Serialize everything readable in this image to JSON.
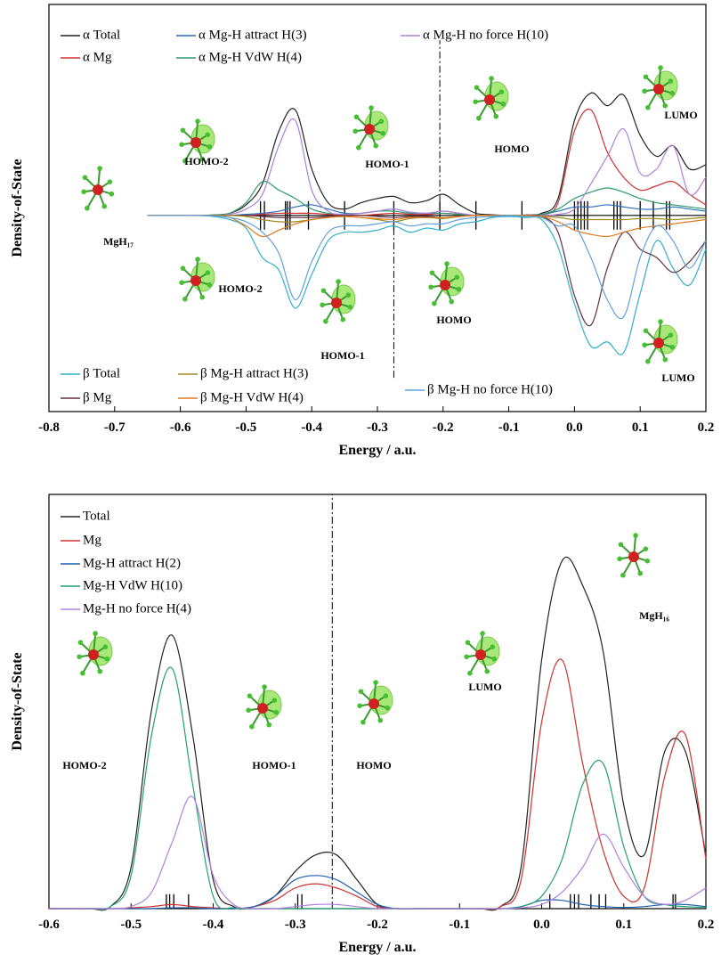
{
  "chart_data": [
    {
      "type": "line",
      "xlabel": "Energy / a.u.",
      "ylabel": "Density-of-State",
      "xlim": [
        -0.8,
        0.2
      ],
      "ylim": [
        -93,
        100
      ],
      "xticks": [
        -0.8,
        -0.7,
        -0.6,
        -0.5,
        -0.4,
        -0.3,
        -0.2,
        -0.1,
        {
          "value": 0,
          "label": "0.0"
        },
        0.1,
        0.2
      ],
      "x": [
        -0.65,
        -0.625,
        -0.6,
        -0.575,
        -0.55,
        -0.525,
        -0.5,
        -0.475,
        -0.45,
        -0.425,
        -0.4,
        -0.375,
        -0.35,
        -0.325,
        -0.3,
        -0.275,
        -0.25,
        -0.225,
        -0.2,
        -0.175,
        -0.15,
        -0.125,
        -0.1,
        -0.075,
        -0.05,
        -0.025,
        0,
        0.025,
        0.05,
        0.075,
        0.1,
        0.125,
        0.15,
        0.175,
        0.2
      ],
      "series": [
        {
          "name": "α Total",
          "color": "#222222",
          "values": [
            0,
            0,
            0,
            0,
            0.2,
            1,
            5,
            15,
            40,
            50,
            22,
            6,
            3,
            6,
            8,
            9,
            6,
            7,
            10,
            5,
            1,
            0.3,
            0,
            0.2,
            1,
            8,
            45,
            58,
            52,
            57,
            38,
            28,
            33,
            22,
            24
          ]
        },
        {
          "name": "α Mg",
          "color": "#d03030",
          "values": [
            0,
            0,
            0,
            0,
            0,
            0,
            0,
            0.5,
            1,
            1,
            1,
            0.5,
            0,
            0,
            0.5,
            1,
            0.5,
            0.5,
            1,
            0.5,
            0,
            0,
            0,
            0,
            0.3,
            6,
            40,
            50,
            30,
            18,
            12,
            14,
            16,
            10,
            5
          ]
        },
        {
          "name": "α Mg-H attract H(3)",
          "color": "#2a6fb8",
          "values": [
            0,
            0,
            0,
            0,
            0,
            0,
            0.5,
            1,
            2,
            4,
            5,
            3,
            1,
            1,
            2,
            3,
            1.5,
            1,
            2,
            1,
            0,
            0,
            0,
            0,
            0.5,
            2,
            4,
            4,
            5,
            4,
            3,
            3,
            4,
            3,
            2
          ]
        },
        {
          "name": "α Mg-H VdW H(4)",
          "color": "#2a9a6a",
          "values": [
            0,
            0,
            0,
            0,
            0.2,
            1,
            6,
            16,
            12,
            8,
            3,
            1,
            0.5,
            1,
            2,
            2,
            1,
            1,
            1,
            0.5,
            0,
            0,
            0,
            0,
            0.5,
            3,
            8,
            11,
            13,
            11,
            8,
            6,
            5,
            4,
            3
          ]
        },
        {
          "name": "α Mg-H no force H(10)",
          "color": "#b080d8",
          "values": [
            0,
            0,
            0,
            0,
            0,
            0.5,
            3,
            10,
            33,
            45,
            12,
            2,
            0.5,
            1,
            2,
            3,
            1.5,
            1,
            2,
            1,
            0,
            0,
            0,
            0,
            0,
            0.5,
            3,
            15,
            28,
            41,
            20,
            22,
            33,
            10,
            18
          ]
        },
        {
          "name": "β Total",
          "color": "#30b0c8",
          "values": [
            0,
            0,
            0,
            0,
            -0.5,
            -2,
            -6,
            -20,
            -26,
            -44,
            -28,
            -12,
            -8,
            -8,
            -7,
            -5,
            -8,
            -6,
            -7,
            -4,
            -3,
            -1,
            -0.5,
            -1,
            -2,
            -15,
            -42,
            -62,
            -60,
            -65,
            -37,
            -12,
            -25,
            -33,
            -16
          ]
        },
        {
          "name": "β Mg",
          "color": "#603040",
          "values": [
            0,
            0,
            0,
            0,
            0,
            0,
            0,
            -0.5,
            -1,
            -1,
            -1,
            -0.5,
            0,
            0,
            -0.5,
            -1,
            -0.5,
            -0.5,
            -1,
            -0.5,
            0,
            0,
            0,
            0,
            -0.5,
            -8,
            -38,
            -52,
            -25,
            -8,
            -16,
            -20,
            -27,
            -22,
            -12
          ]
        },
        {
          "name": "β Mg-H attract H(3)",
          "color": "#a08a20",
          "values": [
            0,
            0,
            0,
            0,
            0,
            0,
            -0.5,
            -2,
            -3,
            -3,
            -2,
            -1,
            -0.5,
            -1,
            -2,
            -3,
            -1.5,
            -1,
            -1.5,
            -0.5,
            0,
            0,
            0,
            0,
            -0.3,
            -1,
            -2,
            -2,
            -2,
            -2,
            -1.5,
            -1.5,
            -2,
            -1.5,
            -1
          ]
        },
        {
          "name": "β Mg-H VdW H(4)",
          "color": "#e07a20",
          "values": [
            0,
            0,
            0,
            0,
            -0.2,
            -1,
            -5,
            -10,
            -7,
            -4,
            -2,
            -1,
            -0.5,
            -1,
            -1.5,
            -2,
            -1,
            -1,
            -1,
            -0.5,
            0,
            0,
            0,
            0,
            -0.5,
            -3,
            -7,
            -9,
            -10,
            -8,
            -6,
            -5,
            -4,
            -3,
            -2
          ]
        },
        {
          "name": "β Mg-H no force H(10)",
          "color": "#60a0e0",
          "values": [
            0,
            0,
            0,
            0,
            -0.2,
            -1,
            -3,
            -8,
            -18,
            -40,
            -22,
            -8,
            -5,
            -5,
            -4,
            -3,
            -5,
            -4,
            -4,
            -2,
            -1,
            -0.5,
            0,
            -0.5,
            -1,
            -5,
            -5,
            -20,
            -40,
            -48,
            -20,
            -5,
            -12,
            -25,
            -12
          ]
        }
      ],
      "levels": [
        -0.478,
        -0.472,
        -0.44,
        -0.437,
        -0.433,
        -0.405,
        -0.35,
        -0.275,
        -0.205,
        -0.15,
        -0.08,
        0.0,
        0.005,
        0.01,
        0.015,
        0.02,
        0.06,
        0.065,
        0.07,
        0.1,
        0.12,
        0.14,
        0.145
      ],
      "vlines": [
        {
          "x": -0.205,
          "y": [
            0,
            83
          ]
        },
        {
          "x": -0.275,
          "y": [
            -77,
            0
          ]
        }
      ],
      "annotations": [
        "HOMO-2",
        "HOMO-1",
        "HOMO",
        "LUMO",
        "MgH₁₇",
        "HOMO-2",
        "HOMO-1",
        "HOMO",
        "LUMO"
      ]
    },
    {
      "type": "line",
      "xlabel": "Energy / a.u.",
      "ylabel": "Density-of-State",
      "xlim": [
        -0.6,
        0.2
      ],
      "ylim": [
        0,
        100
      ],
      "xticks": [
        -0.6,
        -0.5,
        -0.4,
        -0.3,
        -0.2,
        -0.1,
        {
          "value": 0,
          "label": "0.0"
        },
        0.1,
        0.2
      ],
      "x": [
        -0.6,
        -0.575,
        -0.55,
        -0.525,
        -0.5,
        -0.475,
        -0.45,
        -0.425,
        -0.4,
        -0.375,
        -0.35,
        -0.325,
        -0.3,
        -0.275,
        -0.25,
        -0.225,
        -0.2,
        -0.175,
        -0.15,
        -0.125,
        -0.1,
        -0.075,
        -0.05,
        -0.025,
        0,
        0.025,
        0.05,
        0.075,
        0.1,
        0.125,
        0.15,
        0.175,
        0.2
      ],
      "series": [
        {
          "name": "Total",
          "color": "#222222",
          "values": [
            0,
            0,
            0,
            0.5,
            10,
            48,
            66,
            42,
            7,
            0.5,
            0.5,
            3,
            9,
            13,
            13,
            7,
            1,
            0,
            0,
            0,
            0,
            0,
            0.5,
            10,
            60,
            84,
            78,
            62,
            25,
            13,
            38,
            38,
            13
          ]
        },
        {
          "name": "Mg",
          "color": "#d03030",
          "values": [
            0,
            0,
            0,
            0,
            0.2,
            0.5,
            1,
            0.5,
            0.2,
            0,
            0.5,
            2,
            5,
            6,
            5,
            3,
            0.5,
            0,
            0,
            0,
            0,
            0,
            0.5,
            7,
            45,
            60,
            35,
            14,
            3,
            5,
            32,
            42,
            12
          ]
        },
        {
          "name": "Mg-H attract H(2)",
          "color": "#1f5fb0",
          "values": [
            0,
            0,
            0,
            0,
            0,
            0,
            0.2,
            0.2,
            0,
            0,
            0.5,
            3,
            7,
            8,
            7,
            4,
            1,
            0,
            0,
            0,
            0,
            0,
            0,
            0.5,
            2,
            2,
            1,
            0.5,
            0.3,
            0.5,
            1,
            1,
            0.5
          ]
        },
        {
          "name": "Mg-H VdW H(10)",
          "color": "#20a070",
          "values": [
            0,
            0,
            0,
            0.5,
            8,
            42,
            58,
            30,
            3,
            0.2,
            0,
            0,
            0,
            0,
            0,
            0,
            0,
            0,
            0,
            0,
            0,
            0,
            0,
            0.5,
            3,
            12,
            30,
            35,
            15,
            3,
            1,
            0.5,
            0.3
          ]
        },
        {
          "name": "Mg-H no force H(4)",
          "color": "#b080e0",
          "values": [
            0,
            0,
            0,
            0,
            0.5,
            4,
            16,
            27,
            8,
            1,
            0,
            0,
            0.5,
            1,
            1,
            0.5,
            0,
            0,
            0,
            0,
            0,
            0,
            0,
            0.2,
            1,
            4,
            10,
            18,
            10,
            3,
            1,
            2,
            5
          ]
        }
      ],
      "levels": [
        -0.457,
        -0.453,
        -0.448,
        -0.43,
        -0.297,
        -0.292,
        0.01,
        0.035,
        0.04,
        0.045,
        0.06,
        0.07,
        0.078,
        0.16,
        0.163
      ],
      "vlines": [
        {
          "x": -0.255,
          "y": [
            0,
            100
          ]
        }
      ],
      "annotations": [
        "HOMO-2",
        "HOMO-1",
        "HOMO",
        "LUMO",
        "MgH₁₆"
      ]
    }
  ]
}
